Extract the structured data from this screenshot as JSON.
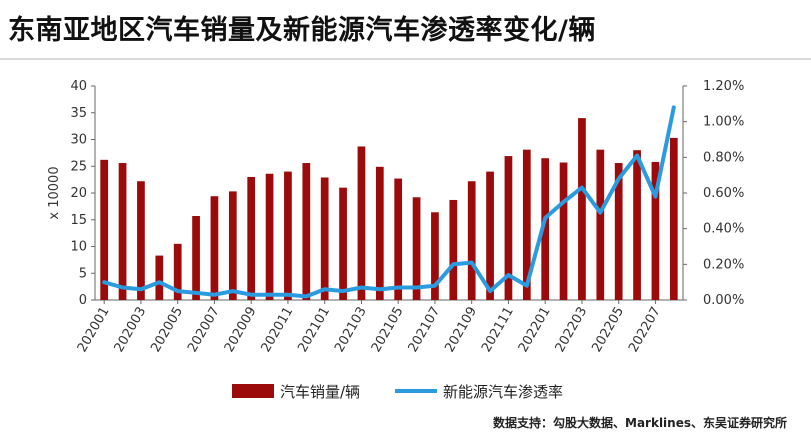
{
  "title": "东南亚地区汽车销量及新能源汽车渗透率变化/辆",
  "source": "数据支持：勾股大数据、Marklines、东吴证券研究所",
  "colors": {
    "bar": "#9b0b0b",
    "line": "#2b9be0",
    "axis_text": "#333333"
  },
  "chart_data": {
    "type": "bar",
    "x": [
      "202001",
      "202002",
      "202003",
      "202004",
      "202005",
      "202006",
      "202007",
      "202008",
      "202009",
      "202010",
      "202011",
      "202012",
      "202101",
      "202102",
      "202103",
      "202104",
      "202105",
      "202106",
      "202107",
      "202108",
      "202109",
      "202110",
      "202111",
      "202112",
      "202201",
      "202202",
      "202203",
      "202204",
      "202205",
      "202206",
      "202207",
      "202208"
    ],
    "x_tick_labels": [
      "202001",
      "202003",
      "202005",
      "202007",
      "202009",
      "202011",
      "202101",
      "202103",
      "202105",
      "202107",
      "202109",
      "202111",
      "202201",
      "202203",
      "202205",
      "202207"
    ],
    "series": [
      {
        "name": "汽车销量/辆",
        "type": "bar",
        "axis": "left",
        "values": [
          26.2,
          25.6,
          22.2,
          8.3,
          10.5,
          15.7,
          19.4,
          20.3,
          23.0,
          23.6,
          24.0,
          25.6,
          22.9,
          21.0,
          28.7,
          24.9,
          22.7,
          19.2,
          16.4,
          18.7,
          22.2,
          24.0,
          26.9,
          28.1,
          26.5,
          25.7,
          34.0,
          28.1,
          25.6,
          28.0,
          25.8,
          30.3
        ]
      },
      {
        "name": "新能源汽车渗透率",
        "type": "line",
        "axis": "right",
        "values": [
          0.1,
          0.07,
          0.06,
          0.1,
          0.05,
          0.04,
          0.03,
          0.05,
          0.03,
          0.03,
          0.03,
          0.02,
          0.06,
          0.05,
          0.07,
          0.06,
          0.07,
          0.07,
          0.08,
          0.2,
          0.21,
          0.05,
          0.14,
          0.08,
          0.46,
          0.55,
          0.63,
          0.49,
          0.68,
          0.81,
          0.58,
          1.08
        ]
      }
    ],
    "ylabel_left": "x 10000",
    "ylim_left": [
      0,
      40
    ],
    "yticks_left": [
      "0",
      "5",
      "10",
      "15",
      "20",
      "25",
      "30",
      "35",
      "40"
    ],
    "ylim_right": [
      0,
      1.2
    ],
    "yticks_right": [
      "0.00%",
      "0.20%",
      "0.40%",
      "0.60%",
      "0.80%",
      "1.00%",
      "1.20%"
    ],
    "grid": false,
    "legend_position": "bottom"
  }
}
